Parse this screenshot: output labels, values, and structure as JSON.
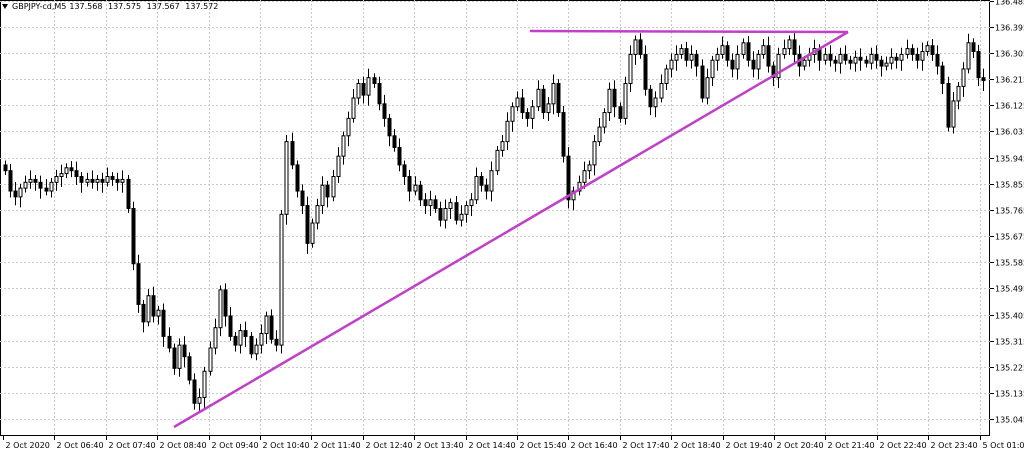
{
  "header": {
    "symbol": "GBPJPY-cd,M5",
    "open": "137.568",
    "high": "137.575",
    "low": "137.567",
    "close": "137.572"
  },
  "colors": {
    "background": "#ffffff",
    "grid": "#c8c8c8",
    "candle": "#000000",
    "trendline": "#c040c8"
  },
  "chart_data": {
    "type": "candlestick",
    "title": "",
    "xlabel": "",
    "ylabel": "",
    "ylim": [
      135.008,
      136.47
    ],
    "grid": true,
    "y_ticks": [
      "136.485",
      "136.395",
      "136.305",
      "136.215",
      "136.125",
      "136.035",
      "135.945",
      "135.855",
      "135.765",
      "135.675",
      "135.585",
      "135.495",
      "135.405",
      "135.315",
      "135.225",
      "135.135",
      "135.045"
    ],
    "x_ticks": [
      "2 Oct 2020",
      "2 Oct 06:40",
      "2 Oct 07:40",
      "2 Oct 08:40",
      "2 Oct 09:40",
      "2 Oct 10:40",
      "2 Oct 11:40",
      "2 Oct 12:40",
      "2 Oct 13:40",
      "2 Oct 14:40",
      "2 Oct 15:40",
      "2 Oct 16:40",
      "2 Oct 17:40",
      "2 Oct 18:40",
      "2 Oct 19:40",
      "2 Oct 20:40",
      "2 Oct 21:40",
      "2 Oct 22:40",
      "2 Oct 23:40",
      "5 Oct 01:05"
    ],
    "closes": [
      135.9,
      135.83,
      135.81,
      135.84,
      135.86,
      135.87,
      135.86,
      135.84,
      135.83,
      135.86,
      135.88,
      135.89,
      135.91,
      135.9,
      135.88,
      135.86,
      135.87,
      135.86,
      135.87,
      135.86,
      135.88,
      135.87,
      135.86,
      135.87,
      135.77,
      135.58,
      135.44,
      135.38,
      135.47,
      135.4,
      135.42,
      135.33,
      135.29,
      135.22,
      135.3,
      135.26,
      135.18,
      135.1,
      135.12,
      135.21,
      135.29,
      135.36,
      135.49,
      135.4,
      135.33,
      135.3,
      135.35,
      135.33,
      135.27,
      135.3,
      135.34,
      135.4,
      135.32,
      135.3,
      135.75,
      136.0,
      135.92,
      135.83,
      135.78,
      135.65,
      135.72,
      135.78,
      135.85,
      135.81,
      135.88,
      135.95,
      136.02,
      136.08,
      136.15,
      136.2,
      136.16,
      136.22,
      136.2,
      136.13,
      136.08,
      136.02,
      135.98,
      135.92,
      135.88,
      135.83,
      135.85,
      135.8,
      135.78,
      135.8,
      135.77,
      135.73,
      135.77,
      135.79,
      135.73,
      135.75,
      135.78,
      135.8,
      135.88,
      135.85,
      135.83,
      135.9,
      135.97,
      136.0,
      136.07,
      136.12,
      136.15,
      136.1,
      136.08,
      136.12,
      136.18,
      136.1,
      136.13,
      136.2,
      136.1,
      135.95,
      135.8,
      135.83,
      135.86,
      135.9,
      135.92,
      136.0,
      136.05,
      136.1,
      136.18,
      136.12,
      136.08,
      136.2,
      136.3,
      136.35,
      136.3,
      136.18,
      136.12,
      136.15,
      136.2,
      136.25,
      136.28,
      136.3,
      136.32,
      136.28,
      136.3,
      136.26,
      136.15,
      136.22,
      136.28,
      136.3,
      136.33,
      136.28,
      136.25,
      136.3,
      136.34,
      136.28,
      136.25,
      136.3,
      136.33,
      136.26,
      136.22,
      136.3,
      136.32,
      136.35,
      136.3,
      136.26,
      136.28,
      136.3,
      136.32,
      136.28,
      136.3,
      136.28,
      136.27,
      136.3,
      136.28,
      136.27,
      136.29,
      136.28,
      136.27,
      136.3,
      136.28,
      136.26,
      136.27,
      136.29,
      136.28,
      136.3,
      136.32,
      136.3,
      136.28,
      136.31,
      136.33,
      136.3,
      136.26,
      136.2,
      136.05,
      136.14,
      136.19,
      136.25,
      136.34,
      136.31,
      136.22,
      136.21
    ]
  }
}
